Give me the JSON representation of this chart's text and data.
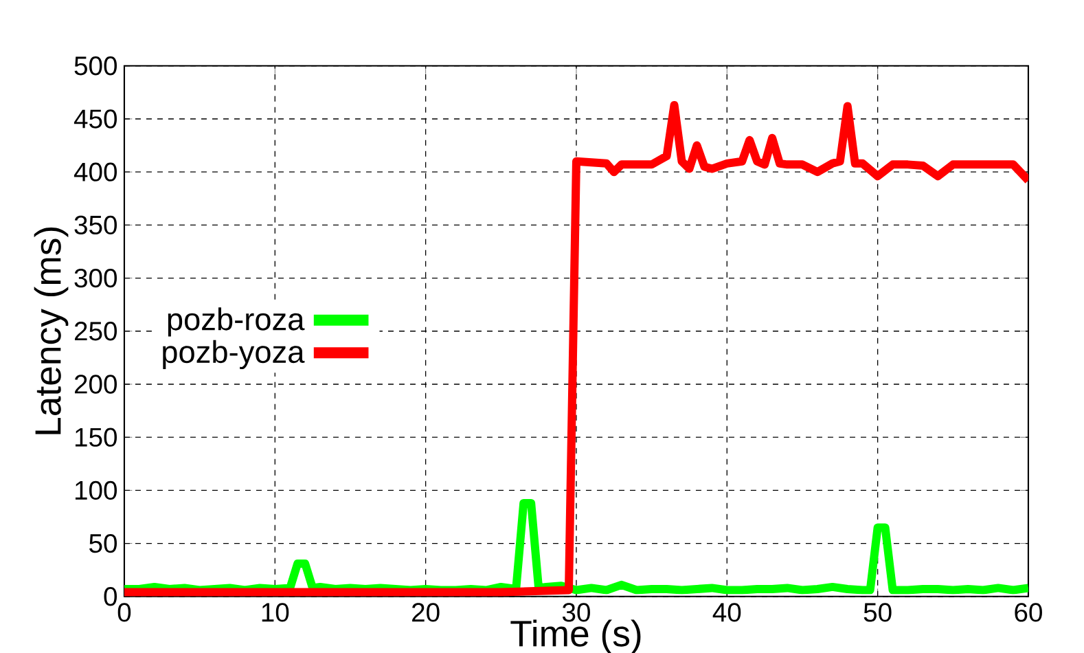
{
  "chart_data": {
    "type": "line",
    "xlabel": "Time (s)",
    "ylabel": "Latency (ms)",
    "xlim": [
      0,
      60
    ],
    "ylim": [
      0,
      500
    ],
    "xticks": [
      0,
      10,
      20,
      30,
      40,
      50,
      60
    ],
    "yticks": [
      0,
      50,
      100,
      150,
      200,
      250,
      300,
      350,
      400,
      450,
      500
    ],
    "grid": true,
    "legend": "left",
    "line_style": "solid",
    "marker": "none",
    "series": [
      {
        "name": "pozb-roza",
        "color": "#00ff00",
        "x": [
          0,
          1,
          2,
          3,
          4,
          5,
          6,
          7,
          8,
          9,
          10,
          11,
          11.5,
          12,
          12.5,
          13,
          14,
          15,
          16,
          17,
          18,
          19,
          20,
          21,
          22,
          23,
          24,
          25,
          26,
          26.5,
          27,
          27.5,
          28,
          29,
          30,
          31,
          32,
          33,
          34,
          35,
          36,
          37,
          38,
          39,
          40,
          41,
          42,
          43,
          44,
          45,
          46,
          47,
          48,
          49,
          49.5,
          50,
          50.5,
          51,
          52,
          53,
          54,
          55,
          56,
          57,
          58,
          59,
          60
        ],
        "values": [
          7,
          7,
          9,
          7,
          8,
          6,
          7,
          8,
          6,
          8,
          7,
          8,
          31,
          31,
          8,
          9,
          7,
          8,
          7,
          8,
          7,
          6,
          7,
          6,
          6,
          7,
          6,
          9,
          7,
          88,
          88,
          8,
          9,
          10,
          6,
          8,
          6,
          11,
          6,
          7,
          7,
          6,
          7,
          8,
          6,
          6,
          7,
          7,
          8,
          6,
          7,
          9,
          7,
          6,
          6,
          65,
          65,
          6,
          6,
          7,
          7,
          6,
          7,
          6,
          8,
          6,
          8
        ]
      },
      {
        "name": "pozb-yoza",
        "color": "#ff0000",
        "x": [
          0,
          5,
          10,
          15,
          20,
          25,
          29.5,
          30,
          31,
          32,
          32.5,
          33,
          34,
          35,
          36,
          36.5,
          37,
          37.5,
          38,
          38.5,
          39,
          40,
          41,
          41.5,
          42,
          42.5,
          43,
          43.5,
          44,
          45,
          46,
          47,
          47.5,
          48,
          48.5,
          49,
          50,
          51,
          52,
          53,
          54,
          55,
          56,
          57,
          58,
          59,
          60
        ],
        "values": [
          4,
          4,
          4,
          4,
          4,
          4,
          6,
          410,
          409,
          408,
          400,
          407,
          407,
          407,
          415,
          463,
          410,
          403,
          425,
          405,
          403,
          408,
          410,
          430,
          410,
          407,
          432,
          408,
          407,
          407,
          400,
          408,
          410,
          462,
          408,
          408,
          396,
          407,
          407,
          406,
          396,
          407,
          407,
          407,
          407,
          407,
          392
        ]
      }
    ]
  }
}
